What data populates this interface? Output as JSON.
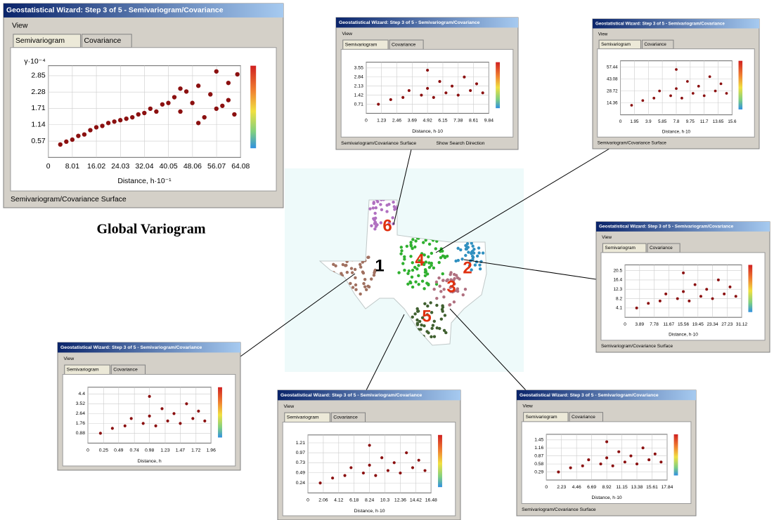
{
  "caption": "Global Variogram",
  "map": {
    "labels": [
      "6",
      "4",
      "2",
      "1",
      "3",
      "5"
    ]
  },
  "panels": [
    {
      "title": "Geostatistical Wizard: Step 3 of 5 - Semivariogram/Covariance",
      "view": "View",
      "tabs": [
        "Semivariogram",
        "Covariance"
      ],
      "ylabel": "γ·10⁻⁴",
      "xlabel": "Distance, h·10⁻¹",
      "footer": "Semivariogram/Covariance Surface",
      "xlim": [
        0,
        64.08
      ],
      "ylim": [
        0,
        3.2
      ],
      "xticks": [
        0,
        8.01,
        16.02,
        24.03,
        32.04,
        40.05,
        48.06,
        56.07,
        64.08
      ],
      "yticks": [
        0.57,
        1.14,
        1.71,
        2.28,
        2.85
      ],
      "points": [
        [
          4,
          0.45
        ],
        [
          6,
          0.55
        ],
        [
          8,
          0.62
        ],
        [
          10,
          0.75
        ],
        [
          12,
          0.8
        ],
        [
          14,
          0.95
        ],
        [
          16,
          1.05
        ],
        [
          18,
          1.1
        ],
        [
          20,
          1.2
        ],
        [
          22,
          1.25
        ],
        [
          24,
          1.3
        ],
        [
          26,
          1.35
        ],
        [
          28,
          1.4
        ],
        [
          30,
          1.5
        ],
        [
          32,
          1.55
        ],
        [
          34,
          1.7
        ],
        [
          36,
          1.6
        ],
        [
          38,
          1.85
        ],
        [
          40,
          1.9
        ],
        [
          42,
          2.1
        ],
        [
          44,
          1.6
        ],
        [
          46,
          2.3
        ],
        [
          48,
          1.9
        ],
        [
          50,
          2.5
        ],
        [
          52,
          1.4
        ],
        [
          54,
          2.2
        ],
        [
          56,
          3.0
        ],
        [
          58,
          1.8
        ],
        [
          60,
          2.6
        ],
        [
          62,
          1.5
        ],
        [
          63,
          2.9
        ],
        [
          44,
          2.4
        ],
        [
          50,
          1.2
        ],
        [
          56,
          1.7
        ],
        [
          60,
          2.0
        ]
      ]
    },
    {
      "title": "Geostatistical Wizard: Step 3 of 5 - Semivariogram/Covariance",
      "view": "View",
      "tabs": [
        "Semivariogram",
        "Covariance"
      ],
      "xlabel": "Distance, h·10",
      "footer": "Semivariogram/Covariance Surface",
      "option": "Show Search Direction",
      "xlim": [
        0,
        9.84
      ],
      "ylim": [
        0,
        4
      ],
      "xticks": [
        0,
        1.23,
        2.46,
        3.69,
        4.92,
        6.15,
        7.38,
        8.61,
        9.84
      ],
      "yticks": [
        0.71,
        1.42,
        2.13,
        2.84,
        3.55
      ],
      "points": [
        [
          0.98,
          0.71
        ],
        [
          1.97,
          1.07
        ],
        [
          2.95,
          1.24
        ],
        [
          3.44,
          1.78
        ],
        [
          4.43,
          1.42
        ],
        [
          4.92,
          1.95
        ],
        [
          5.41,
          1.24
        ],
        [
          5.9,
          2.49
        ],
        [
          6.4,
          1.6
        ],
        [
          6.89,
          2.13
        ],
        [
          7.38,
          1.42
        ],
        [
          7.87,
          2.84
        ],
        [
          8.36,
          1.78
        ],
        [
          8.86,
          2.31
        ],
        [
          9.35,
          1.6
        ],
        [
          4.92,
          3.37
        ]
      ]
    },
    {
      "title": "Geostatistical Wizard: Step 3 of 5 - Semivariogram/Covariance",
      "view": "View",
      "tabs": [
        "Semivariogram",
        "Covariance"
      ],
      "xlabel": "Distance, h·10",
      "footer": "Semivariogram/Covariance Surface",
      "xlim": [
        0,
        15.6
      ],
      "ylim": [
        0,
        65
      ],
      "xticks": [
        0,
        1.95,
        3.9,
        5.85,
        7.8,
        9.75,
        11.7,
        13.65,
        15.6
      ],
      "yticks": [
        14.36,
        28.72,
        43.08,
        57.44
      ],
      "points": [
        [
          1.56,
          11.49
        ],
        [
          3.12,
          17.23
        ],
        [
          4.68,
          20.1
        ],
        [
          5.46,
          28.72
        ],
        [
          7.02,
          22.98
        ],
        [
          7.8,
          31.59
        ],
        [
          8.58,
          20.1
        ],
        [
          9.36,
          40.21
        ],
        [
          10.14,
          25.85
        ],
        [
          10.92,
          34.46
        ],
        [
          11.7,
          22.98
        ],
        [
          12.48,
          45.95
        ],
        [
          13.26,
          28.72
        ],
        [
          14.04,
          37.34
        ],
        [
          14.82,
          25.85
        ],
        [
          7.8,
          54.57
        ]
      ]
    },
    {
      "title": "Geostatistical Wizard: Step 3 of 5 - Semivariogram/Covariance",
      "view": "View",
      "tabs": [
        "Semivariogram",
        "Covariance"
      ],
      "xlabel": "Distance, h·10",
      "footer": "Semivariogram/Covariance Surface",
      "xlim": [
        0,
        31.12
      ],
      "ylim": [
        0,
        23
      ],
      "xticks": [
        0,
        3.89,
        7.78,
        11.67,
        15.56,
        19.45,
        23.34,
        27.23,
        31.12
      ],
      "yticks": [
        4.1,
        8.2,
        12.3,
        16.4,
        20.5
      ],
      "points": [
        [
          3.11,
          4.1
        ],
        [
          6.22,
          6.15
        ],
        [
          9.34,
          7.18
        ],
        [
          10.89,
          10.25
        ],
        [
          14.0,
          8.2
        ],
        [
          15.56,
          11.28
        ],
        [
          17.12,
          7.18
        ],
        [
          18.67,
          14.35
        ],
        [
          20.23,
          9.23
        ],
        [
          21.78,
          12.3
        ],
        [
          23.34,
          8.2
        ],
        [
          24.9,
          16.4
        ],
        [
          26.45,
          10.25
        ],
        [
          28.01,
          13.33
        ],
        [
          29.56,
          9.23
        ],
        [
          15.56,
          19.48
        ]
      ]
    },
    {
      "title": "Geostatistical Wizard: Step 3 of 5 - Semivariogram/Covariance",
      "view": "View",
      "tabs": [
        "Semivariogram",
        "Covariance"
      ],
      "xlabel": "Distance, h",
      "xlim": [
        0,
        1.96
      ],
      "ylim": [
        0,
        5
      ],
      "xticks": [
        0,
        0.25,
        0.49,
        0.74,
        0.98,
        1.23,
        1.47,
        1.72,
        1.96
      ],
      "yticks": [
        0.88,
        1.76,
        2.64,
        3.52,
        4.4
      ],
      "points": [
        [
          0.2,
          0.88
        ],
        [
          0.39,
          1.32
        ],
        [
          0.59,
          1.54
        ],
        [
          0.69,
          2.2
        ],
        [
          0.88,
          1.76
        ],
        [
          0.98,
          2.42
        ],
        [
          1.08,
          1.54
        ],
        [
          1.18,
          3.08
        ],
        [
          1.27,
          1.98
        ],
        [
          1.37,
          2.64
        ],
        [
          1.47,
          1.76
        ],
        [
          1.57,
          3.52
        ],
        [
          1.67,
          2.2
        ],
        [
          1.76,
          2.86
        ],
        [
          1.86,
          1.98
        ],
        [
          0.98,
          4.18
        ]
      ]
    },
    {
      "title": "Geostatistical Wizard: Step 3 of 5 - Semivariogram/Covariance",
      "view": "View",
      "tabs": [
        "Semivariogram",
        "Covariance"
      ],
      "xlabel": "Distance, h·10",
      "xlim": [
        0,
        16.48
      ],
      "ylim": [
        0,
        1.4
      ],
      "xticks": [
        0,
        2.06,
        4.12,
        6.18,
        8.24,
        10.3,
        12.36,
        14.42,
        16.48
      ],
      "yticks": [
        0.24,
        0.49,
        0.73,
        0.97,
        1.21
      ],
      "points": [
        [
          1.65,
          0.24
        ],
        [
          3.3,
          0.36
        ],
        [
          4.94,
          0.42
        ],
        [
          5.77,
          0.61
        ],
        [
          7.42,
          0.48
        ],
        [
          8.24,
          0.67
        ],
        [
          9.06,
          0.42
        ],
        [
          9.89,
          0.85
        ],
        [
          10.71,
          0.54
        ],
        [
          11.54,
          0.73
        ],
        [
          12.36,
          0.48
        ],
        [
          13.18,
          0.97
        ],
        [
          14.01,
          0.61
        ],
        [
          14.83,
          0.79
        ],
        [
          15.66,
          0.54
        ],
        [
          8.24,
          1.15
        ]
      ]
    },
    {
      "title": "Geostatistical Wizard: Step 3 of 5 - Semivariogram/Covariance",
      "view": "View",
      "tabs": [
        "Semivariogram",
        "Covariance"
      ],
      "xlabel": "Distance, h·10",
      "footer": "Semivariogram/Covariance Surface",
      "xlim": [
        0,
        17.84
      ],
      "ylim": [
        0,
        1.65
      ],
      "xticks": [
        0,
        2.23,
        4.46,
        6.69,
        8.92,
        11.15,
        13.38,
        15.61,
        17.84
      ],
      "yticks": [
        0.29,
        0.58,
        0.87,
        1.16,
        1.45
      ],
      "points": [
        [
          1.78,
          0.29
        ],
        [
          3.57,
          0.44
        ],
        [
          5.35,
          0.51
        ],
        [
          6.24,
          0.73
        ],
        [
          8.03,
          0.58
        ],
        [
          8.92,
          0.8
        ],
        [
          9.81,
          0.51
        ],
        [
          10.7,
          1.02
        ],
        [
          11.6,
          0.65
        ],
        [
          12.49,
          0.87
        ],
        [
          13.38,
          0.58
        ],
        [
          14.27,
          1.16
        ],
        [
          15.16,
          0.73
        ],
        [
          16.06,
          0.94
        ],
        [
          16.95,
          0.65
        ],
        [
          8.92,
          1.38
        ]
      ]
    }
  ]
}
